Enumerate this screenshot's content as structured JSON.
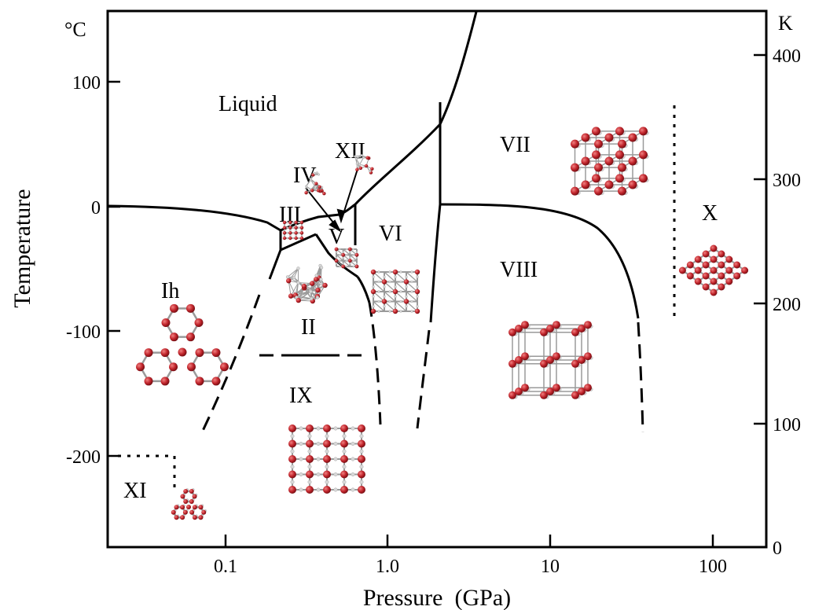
{
  "axes": {
    "xlabel": "Pressure  (GPa)",
    "ylabel": "Temperature",
    "x_scale": "log",
    "x_ticks": [
      "0.1",
      "1.0",
      "10",
      "100"
    ],
    "y_left_unit": "°C",
    "y_left_ticks": [
      "100",
      "0",
      "-100",
      "-200"
    ],
    "y_right_unit": "K",
    "y_right_ticks": [
      "400",
      "300",
      "200",
      "100",
      "0"
    ]
  },
  "phases": {
    "liquid": "Liquid",
    "ih": "Ih",
    "ii": "II",
    "iii": "III",
    "iv": "IV",
    "v": "V",
    "vi": "VI",
    "vii": "VII",
    "viii": "VIII",
    "ix": "IX",
    "x": "X",
    "xi": "XI",
    "xii": "XII"
  },
  "colors": {
    "line": "#000000",
    "oxygen_atom": "#c0242b",
    "hydrogen_atom": "#d8d8d8",
    "bond": "#9a9a9a"
  },
  "structure_icons": [
    "ice-ih",
    "ice-ii",
    "ice-iii",
    "ice-iv",
    "ice-v",
    "ice-vi",
    "ice-vii",
    "ice-viii",
    "ice-ix",
    "ice-x",
    "ice-xi",
    "ice-xii"
  ]
}
